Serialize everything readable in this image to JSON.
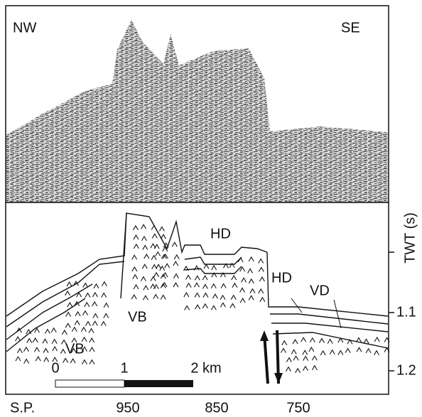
{
  "panels": {
    "seismic": {
      "left_label": "NW",
      "right_label": "SE"
    },
    "interpretation": {
      "labels": [
        "HD",
        "HD",
        "VD",
        "VB",
        "VB"
      ],
      "scale_bar": {
        "ticks": [
          "0",
          "1",
          "2 km"
        ]
      }
    }
  },
  "axis": {
    "title": "TWT (s)",
    "ticks": [
      "1.1",
      "1.2"
    ]
  },
  "shotpoints": {
    "title": "S.P.",
    "labels": [
      "950",
      "850",
      "750"
    ]
  }
}
